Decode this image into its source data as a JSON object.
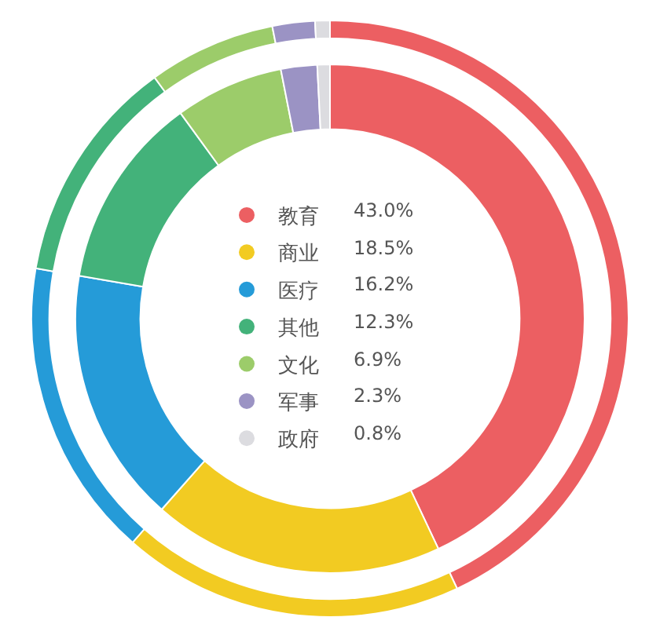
{
  "chart_data": {
    "type": "donut",
    "categories": [
      "教育",
      "商业",
      "医疗",
      "其他",
      "文化",
      "军事",
      "政府"
    ],
    "colors": [
      "#ec5f62",
      "#f2cb22",
      "#259bd8",
      "#43b27a",
      "#9ccc6a",
      "#9b93c4",
      "#dcdce0"
    ],
    "series": [
      {
        "values": [
          43.0,
          18.5,
          16.2,
          12.3,
          6.9,
          2.3,
          0.8
        ],
        "value_labels": [
          "43.0%",
          "18.5%",
          "16.2%",
          "12.3%",
          "6.9%",
          "2.3%",
          "0.8%"
        ]
      },
      {
        "values": [
          43.0,
          18.5,
          16.2,
          12.3,
          6.9,
          2.3,
          0.8
        ]
      }
    ],
    "legend": "center"
  }
}
